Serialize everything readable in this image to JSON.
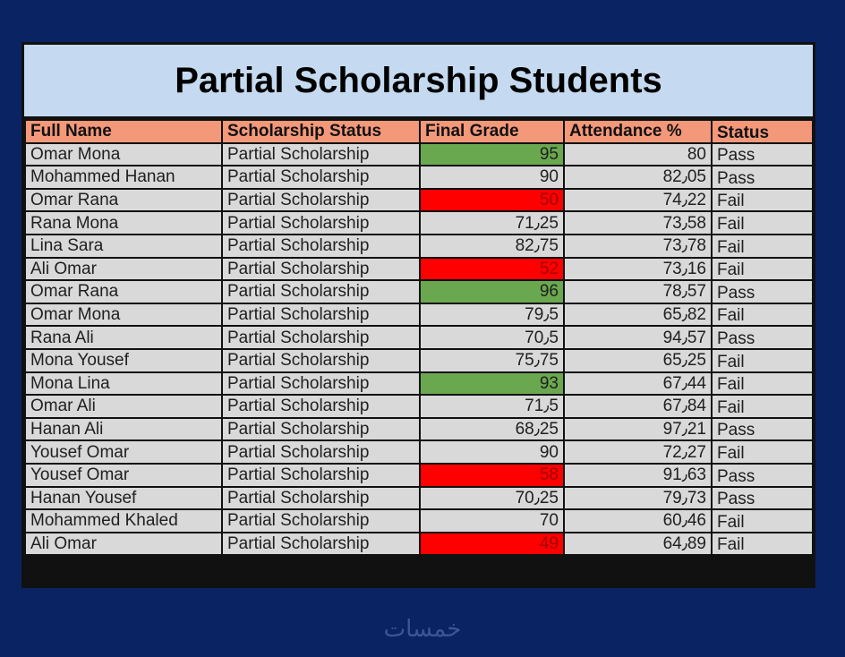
{
  "title": "Partial Scholarship Students",
  "headers": {
    "name": "Full Name",
    "scholarship": "Scholarship Status",
    "grade": "Final Grade",
    "attendance": "Attendance %",
    "status": "Status"
  },
  "rows": [
    {
      "name": "Omar Mona",
      "scholarship": "Partial Scholarship",
      "grade": "95",
      "grade_flag": "high",
      "attendance": "80",
      "status": "Pass"
    },
    {
      "name": "Mohammed Hanan",
      "scholarship": "Partial Scholarship",
      "grade": "90",
      "grade_flag": "none",
      "attendance": "82٫05",
      "status": "Pass"
    },
    {
      "name": "Omar Rana",
      "scholarship": "Partial Scholarship",
      "grade": "50",
      "grade_flag": "low",
      "attendance": "74٫22",
      "status": "Fail"
    },
    {
      "name": "Rana Mona",
      "scholarship": "Partial Scholarship",
      "grade": "71٫25",
      "grade_flag": "none",
      "attendance": "73٫58",
      "status": "Fail"
    },
    {
      "name": "Lina Sara",
      "scholarship": "Partial Scholarship",
      "grade": "82٫75",
      "grade_flag": "none",
      "attendance": "73٫78",
      "status": "Fail"
    },
    {
      "name": "Ali Omar",
      "scholarship": "Partial Scholarship",
      "grade": "52",
      "grade_flag": "low",
      "attendance": "73٫16",
      "status": "Fail"
    },
    {
      "name": "Omar Rana",
      "scholarship": "Partial Scholarship",
      "grade": "96",
      "grade_flag": "high",
      "attendance": "78٫57",
      "status": "Pass"
    },
    {
      "name": "Omar Mona",
      "scholarship": "Partial Scholarship",
      "grade": "79٫5",
      "grade_flag": "none",
      "attendance": "65٫82",
      "status": "Fail"
    },
    {
      "name": "Rana Ali",
      "scholarship": "Partial Scholarship",
      "grade": "70٫5",
      "grade_flag": "none",
      "attendance": "94٫57",
      "status": "Pass"
    },
    {
      "name": "Mona Yousef",
      "scholarship": "Partial Scholarship",
      "grade": "75٫75",
      "grade_flag": "none",
      "attendance": "65٫25",
      "status": "Fail"
    },
    {
      "name": "Mona Lina",
      "scholarship": "Partial Scholarship",
      "grade": "93",
      "grade_flag": "high",
      "attendance": "67٫44",
      "status": "Fail"
    },
    {
      "name": "Omar Ali",
      "scholarship": "Partial Scholarship",
      "grade": "71٫5",
      "grade_flag": "none",
      "attendance": "67٫84",
      "status": "Fail"
    },
    {
      "name": "Hanan Ali",
      "scholarship": "Partial Scholarship",
      "grade": "68٫25",
      "grade_flag": "none",
      "attendance": "97٫21",
      "status": "Pass"
    },
    {
      "name": "Yousef Omar",
      "scholarship": "Partial Scholarship",
      "grade": "90",
      "grade_flag": "none",
      "attendance": "72٫27",
      "status": "Fail"
    },
    {
      "name": "Yousef Omar",
      "scholarship": "Partial Scholarship",
      "grade": "58",
      "grade_flag": "low",
      "attendance": "91٫63",
      "status": "Pass"
    },
    {
      "name": "Hanan Yousef",
      "scholarship": "Partial Scholarship",
      "grade": "70٫25",
      "grade_flag": "none",
      "attendance": "79٫73",
      "status": "Pass"
    },
    {
      "name": "Mohammed Khaled",
      "scholarship": "Partial Scholarship",
      "grade": "70",
      "grade_flag": "none",
      "attendance": "60٫46",
      "status": "Fail"
    },
    {
      "name": "Ali Omar",
      "scholarship": "Partial Scholarship",
      "grade": "49",
      "grade_flag": "low",
      "attendance": "64٫89",
      "status": "Fail"
    }
  ],
  "colors": {
    "background": "#0a2463",
    "title_fill": "#c5daf0",
    "header_fill": "#f4987a",
    "cell_fill": "#d9d9d9",
    "grade_high": "#6aa84f",
    "grade_low": "#ff0000"
  },
  "watermark": "خمسات"
}
